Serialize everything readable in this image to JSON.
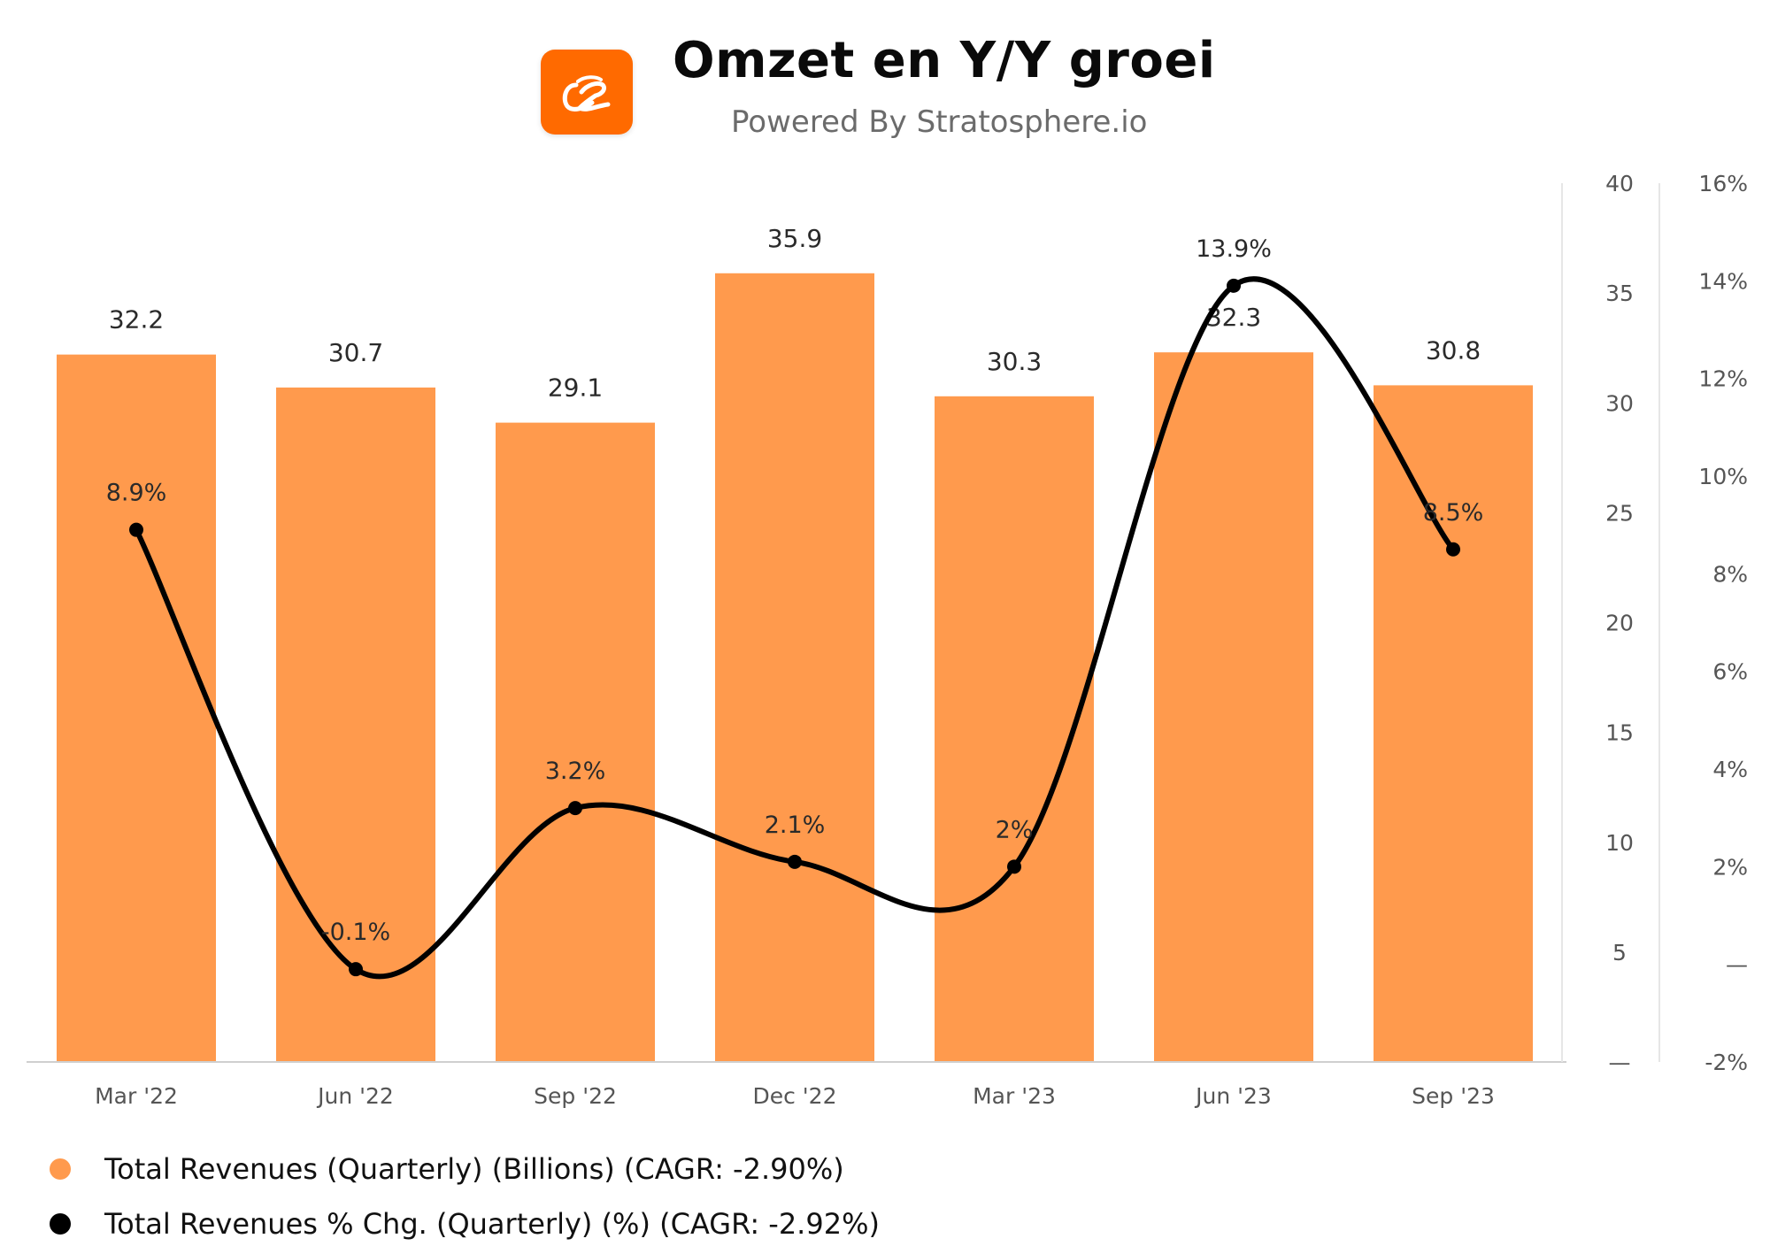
{
  "header": {
    "title": "Omzet en Y/Y groei",
    "subtitle": "Powered By Stratosphere.io",
    "logo_icon": "alibaba-logo-icon"
  },
  "colors": {
    "bar": "#ff9a4d",
    "line": "#000000",
    "logo_bg": "#ff6a00",
    "axis_text": "#555555"
  },
  "chart_data": {
    "type": "bar",
    "categories": [
      "Mar '22",
      "Jun '22",
      "Sep '22",
      "Dec '22",
      "Mar '23",
      "Jun '23",
      "Sep '23"
    ],
    "series": [
      {
        "name": "Total Revenues (Quarterly) (Billions) (CAGR: -2.90%)",
        "type": "bar",
        "axis": "left",
        "values": [
          32.2,
          30.7,
          29.1,
          35.9,
          30.3,
          32.3,
          30.8
        ],
        "labels": [
          "32.2",
          "30.7",
          "29.1",
          "35.9",
          "30.3",
          "32.3",
          "30.8"
        ]
      },
      {
        "name": "Total Revenues % Chg. (Quarterly) (%) (CAGR: -2.92%)",
        "type": "line",
        "axis": "right",
        "values": [
          8.9,
          -0.1,
          3.2,
          2.1,
          2.0,
          13.9,
          8.5
        ],
        "labels": [
          "8.9%",
          "-0.1%",
          "3.2%",
          "2.1%",
          "2%",
          "13.9%",
          "8.5%"
        ]
      }
    ],
    "left_axis": {
      "ylim": [
        0,
        40
      ],
      "ticks": [
        0,
        5,
        10,
        15,
        20,
        25,
        30,
        35,
        40
      ],
      "tick_labels": [
        "—",
        "5",
        "10",
        "15",
        "20",
        "25",
        "30",
        "35",
        "40"
      ]
    },
    "right_axis": {
      "ylim": [
        -2,
        16
      ],
      "ticks": [
        -2,
        0,
        2,
        4,
        6,
        8,
        10,
        12,
        14,
        16
      ],
      "tick_labels": [
        "-2%",
        "—",
        "2%",
        "4%",
        "6%",
        "8%",
        "10%",
        "12%",
        "14%",
        "16%"
      ]
    },
    "grid": false,
    "legend_position": "bottom-left"
  },
  "legend": [
    {
      "label": "Total Revenues (Quarterly) (Billions) (CAGR: -2.90%)",
      "color": "#ff9a4d"
    },
    {
      "label": "Total Revenues % Chg. (Quarterly) (%) (CAGR: -2.92%)",
      "color": "#000000"
    }
  ]
}
